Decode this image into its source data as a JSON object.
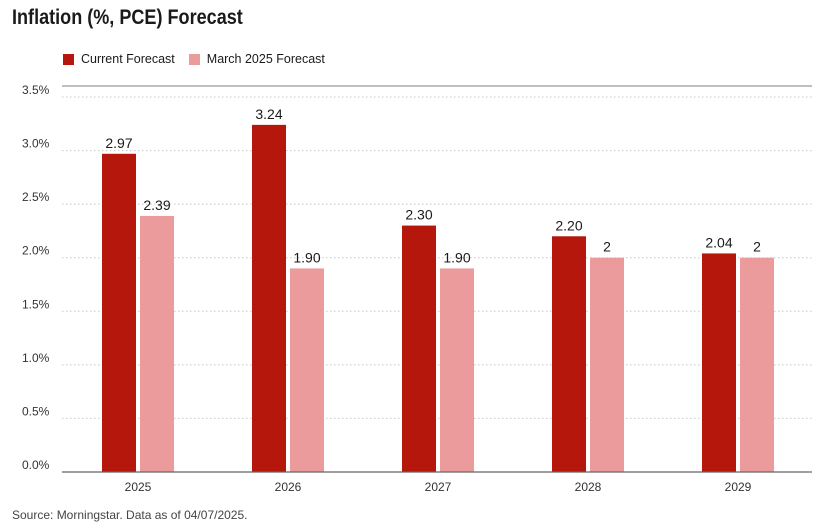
{
  "chart_data": {
    "type": "bar",
    "title": "Inflation (%, PCE) Forecast",
    "categories": [
      "2025",
      "2026",
      "2027",
      "2028",
      "2029"
    ],
    "series": [
      {
        "name": "Current Forecast",
        "values": [
          2.97,
          3.24,
          2.3,
          2.2,
          2.04
        ],
        "labels": [
          "2.97",
          "3.24",
          "2.30",
          "2.20",
          "2.04"
        ],
        "color": "#b5170c"
      },
      {
        "name": "March 2025 Forecast",
        "values": [
          2.39,
          1.9,
          1.9,
          2.0,
          2.0
        ],
        "labels": [
          "2.39",
          "1.90",
          "1.90",
          "2",
          "2"
        ],
        "color": "#ec9b9d"
      }
    ],
    "ylim": [
      0,
      3.5
    ],
    "yticks": [
      0,
      0.5,
      1.0,
      1.5,
      2.0,
      2.5,
      3.0,
      3.5
    ],
    "ytick_labels": [
      "0.0%",
      "0.5%",
      "1.0%",
      "1.5%",
      "2.0%",
      "2.5%",
      "3.0%",
      "3.5%"
    ],
    "grid": "horizontal dotted",
    "legend_position": "top-left"
  },
  "source_note": "Source: Morningstar. Data as of 04/07/2025."
}
